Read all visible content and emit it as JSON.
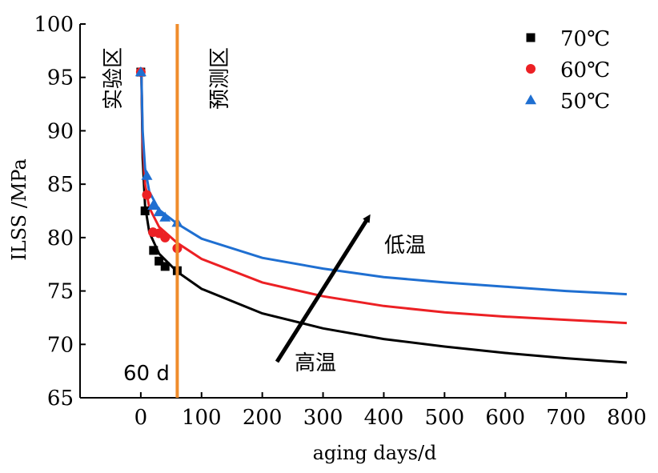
{
  "chart_data": {
    "type": "scatter",
    "xlabel": "aging days/d",
    "ylabel": "ILSS /MPa",
    "xlim": [
      -100,
      800
    ],
    "ylim": [
      65,
      100
    ],
    "xticks": [
      0,
      100,
      200,
      300,
      400,
      500,
      600,
      700,
      800
    ],
    "yticks": [
      65,
      70,
      75,
      80,
      85,
      90,
      95,
      100
    ],
    "grid": false,
    "legend_position": "top-right",
    "series": [
      {
        "name": "70℃",
        "color": "#000000",
        "marker": "square",
        "points": [
          [
            0,
            95.5
          ],
          [
            7,
            82.5
          ],
          [
            21,
            78.8
          ],
          [
            30,
            77.8
          ],
          [
            40,
            77.3
          ],
          [
            60,
            76.9
          ]
        ],
        "fit": {
          "x": [
            1,
            3,
            7,
            14,
            30,
            60,
            100,
            200,
            300,
            400,
            500,
            600,
            700,
            800
          ],
          "y": [
            95.5,
            87.5,
            83.0,
            80.5,
            78.5,
            76.8,
            75.2,
            72.9,
            71.5,
            70.5,
            69.8,
            69.2,
            68.7,
            68.3
          ]
        }
      },
      {
        "name": "60℃",
        "color": "#ec2024",
        "marker": "circle",
        "points": [
          [
            0,
            95.5
          ],
          [
            10,
            84.0
          ],
          [
            20,
            80.5
          ],
          [
            30,
            80.4
          ],
          [
            40,
            80.0
          ],
          [
            60,
            79.0
          ]
        ],
        "fit": {
          "x": [
            1,
            3,
            7,
            14,
            30,
            60,
            100,
            200,
            300,
            400,
            500,
            600,
            700,
            800
          ],
          "y": [
            95.5,
            89.0,
            85.0,
            82.8,
            81.0,
            79.5,
            78.0,
            75.8,
            74.5,
            73.6,
            73.0,
            72.6,
            72.3,
            72.0
          ]
        }
      },
      {
        "name": "50℃",
        "color": "#1f6fd1",
        "marker": "triangle",
        "points": [
          [
            0,
            95.5
          ],
          [
            10,
            85.8
          ],
          [
            20,
            83.0
          ],
          [
            30,
            82.4
          ],
          [
            40,
            81.9
          ],
          [
            60,
            81.4
          ]
        ],
        "fit": {
          "x": [
            1,
            3,
            7,
            14,
            30,
            60,
            100,
            200,
            300,
            400,
            500,
            600,
            700,
            800
          ],
          "y": [
            95.5,
            90.0,
            86.5,
            84.3,
            82.6,
            81.3,
            79.9,
            78.1,
            77.1,
            76.3,
            75.8,
            75.4,
            75.0,
            74.7
          ]
        }
      }
    ],
    "reference_line": {
      "x": 60,
      "label": "60 d",
      "color": "#f08c2b"
    },
    "annotations": {
      "experiment_zone": "实验区",
      "prediction_zone": "预测区",
      "low_temp": "低温",
      "high_temp": "高温"
    }
  }
}
